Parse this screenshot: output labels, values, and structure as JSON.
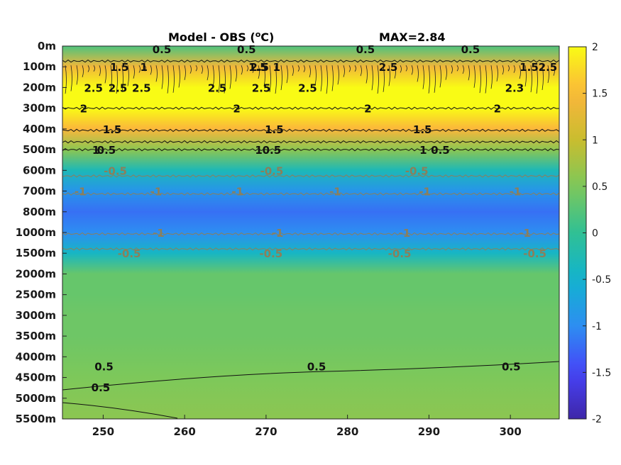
{
  "chart_data": {
    "type": "heatmap",
    "title_left": "Model - OBS (",
    "title_unit_sup": "o",
    "title_unit": "C)",
    "title_right": "MAX=2.84",
    "x_ticks": [
      250,
      260,
      270,
      280,
      290,
      300
    ],
    "xlim": [
      245,
      306
    ],
    "y_ticks": [
      "0m",
      "100m",
      "200m",
      "300m",
      "400m",
      "500m",
      "600m",
      "700m",
      "800m",
      "1000m",
      "1500m",
      "2000m",
      "2500m",
      "3000m",
      "3500m",
      "4000m",
      "4500m",
      "5000m",
      "5500m"
    ],
    "colorbar": {
      "ticks": [
        "2",
        "1.5",
        "1",
        "0.5",
        "0",
        "-0.5",
        "-1",
        "-1.5",
        "-2"
      ],
      "range": [
        -2,
        2
      ]
    },
    "colormap": [
      "#3e26a8",
      "#4743f8",
      "#2d8ef1",
      "#11b3cf",
      "#30c094",
      "#7dc85a",
      "#c9bd2f",
      "#fbb63b",
      "#f9fb15"
    ],
    "depth_profile": [
      {
        "depth": "0m",
        "value": 0.2
      },
      {
        "depth": "100m",
        "value": 1.4
      },
      {
        "depth": "200m",
        "value": 2.5
      },
      {
        "depth": "300m",
        "value": 2.1
      },
      {
        "depth": "400m",
        "value": 1.5
      },
      {
        "depth": "500m",
        "value": 0.6
      },
      {
        "depth": "600m",
        "value": -0.3
      },
      {
        "depth": "700m",
        "value": -0.9
      },
      {
        "depth": "800m",
        "value": -1.2
      },
      {
        "depth": "1000m",
        "value": -1.0
      },
      {
        "depth": "1500m",
        "value": -0.4
      },
      {
        "depth": "2000m",
        "value": 0.35
      },
      {
        "depth": "2500m",
        "value": 0.35
      },
      {
        "depth": "3000m",
        "value": 0.4
      },
      {
        "depth": "3500m",
        "value": 0.4
      },
      {
        "depth": "4000m",
        "value": 0.45
      },
      {
        "depth": "4500m",
        "value": 0.5
      },
      {
        "depth": "5000m",
        "value": 0.55
      },
      {
        "depth": "5500m",
        "value": 0.6
      }
    ],
    "contour_labels": [
      {
        "text": "0.5",
        "x": 257.2,
        "depth": "0m"
      },
      {
        "text": "1.5",
        "x": 252,
        "depth": "100m"
      },
      {
        "text": "1",
        "x": 255,
        "depth": "100m"
      },
      {
        "text": "0.5",
        "x": 267.6,
        "depth": "0m"
      },
      {
        "text": "1.5",
        "x": 269,
        "depth": "100m"
      },
      {
        "text": "2.5",
        "x": 269.2,
        "depth": "100m"
      },
      {
        "text": "1",
        "x": 271.3,
        "depth": "100m"
      },
      {
        "text": "0.5",
        "x": 282.2,
        "depth": "0m"
      },
      {
        "text": "2.5",
        "x": 285,
        "depth": "100m"
      },
      {
        "text": "0.5",
        "x": 295.1,
        "depth": "0m"
      },
      {
        "text": "1.5",
        "x": 302.3,
        "depth": "100m"
      },
      {
        "text": "2.5",
        "x": 304.6,
        "depth": "100m"
      },
      {
        "text": "2.5",
        "x": 248.8,
        "depth": "200m"
      },
      {
        "text": "2.5",
        "x": 251.8,
        "depth": "200m"
      },
      {
        "text": "2.5",
        "x": 254.7,
        "depth": "200m"
      },
      {
        "text": "2.5",
        "x": 264,
        "depth": "200m"
      },
      {
        "text": "2.5",
        "x": 269.4,
        "depth": "200m"
      },
      {
        "text": "2.5",
        "x": 275.1,
        "depth": "200m"
      },
      {
        "text": "2.3",
        "x": 300.5,
        "depth": "200m"
      },
      {
        "text": "2",
        "x": 247.6,
        "depth": "300m"
      },
      {
        "text": "2",
        "x": 266.4,
        "depth": "300m"
      },
      {
        "text": "2",
        "x": 282.5,
        "depth": "300m"
      },
      {
        "text": "2",
        "x": 298.4,
        "depth": "300m"
      },
      {
        "text": "1.5",
        "x": 251.1,
        "depth": "400m"
      },
      {
        "text": "1.5",
        "x": 271,
        "depth": "400m"
      },
      {
        "text": "1.5",
        "x": 289.2,
        "depth": "400m"
      },
      {
        "text": "1",
        "x": 249.1,
        "depth": "500m"
      },
      {
        "text": "1",
        "x": 269.1,
        "depth": "500m"
      },
      {
        "text": "1",
        "x": 289.3,
        "depth": "500m"
      },
      {
        "text": "0.5",
        "x": 250.4,
        "depth": "500m"
      },
      {
        "text": "0.5",
        "x": 270.7,
        "depth": "500m"
      },
      {
        "text": "0.5",
        "x": 291.4,
        "depth": "500m"
      },
      {
        "text": "-0.5",
        "x": 251.5,
        "depth": "600m"
      },
      {
        "text": "-0.5",
        "x": 270.7,
        "depth": "600m"
      },
      {
        "text": "-0.5",
        "x": 288.5,
        "depth": "600m"
      },
      {
        "text": "-1",
        "x": 247.2,
        "depth": "700m"
      },
      {
        "text": "-1",
        "x": 256.5,
        "depth": "700m"
      },
      {
        "text": "-1",
        "x": 266.5,
        "depth": "700m"
      },
      {
        "text": "-1",
        "x": 278.5,
        "depth": "700m"
      },
      {
        "text": "-1",
        "x": 289.5,
        "depth": "700m"
      },
      {
        "text": "-1",
        "x": 300.6,
        "depth": "700m"
      },
      {
        "text": "-1",
        "x": 256.8,
        "depth": "1000m"
      },
      {
        "text": "-1",
        "x": 271.4,
        "depth": "1000m"
      },
      {
        "text": "-1",
        "x": 287,
        "depth": "1000m"
      },
      {
        "text": "-1",
        "x": 301.8,
        "depth": "1000m"
      },
      {
        "text": "-0.5",
        "x": 253.2,
        "depth": "1500m"
      },
      {
        "text": "-0.5",
        "x": 270.6,
        "depth": "1500m"
      },
      {
        "text": "-0.5",
        "x": 286.4,
        "depth": "1500m"
      },
      {
        "text": "-0.5",
        "x": 303,
        "depth": "1500m"
      },
      {
        "text": "0.5",
        "x": 276.2,
        "depth": "4500m"
      },
      {
        "text": "0.5",
        "x": 300.1,
        "depth": "4500m"
      },
      {
        "text": "0.5",
        "x": 250.1,
        "depth": "4500m"
      },
      {
        "text": "0.5",
        "x": 249.7,
        "depth": "5000m"
      }
    ]
  }
}
